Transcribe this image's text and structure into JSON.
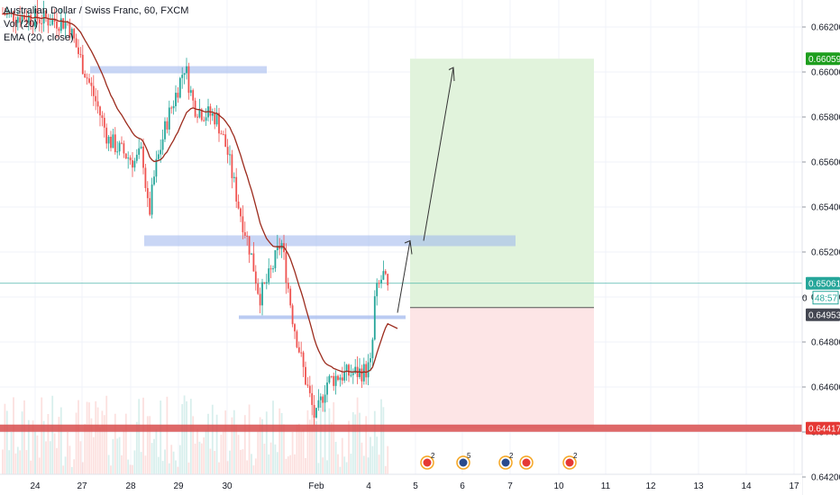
{
  "legend": {
    "symbol": "Australian Dollar / Swiss Franc, 60, FXCM",
    "volume": "Vol (20)",
    "ema": "EMA (20, close)"
  },
  "chart_data": {
    "type": "candlestick",
    "title": "Australian Dollar / Swiss Franc, 60, FXCM",
    "y_ticks": [
      "0.66200",
      "0.66000",
      "0.65800",
      "0.65600",
      "0.65400",
      "0.65200",
      "0.65000",
      "0.64800",
      "0.64600",
      "0.64400",
      "0.64200"
    ],
    "x_ticks": [
      "24",
      "27",
      "28",
      "29",
      "30",
      "Feb",
      "4",
      "5",
      "6",
      "7",
      "10",
      "11",
      "12",
      "13",
      "14",
      "17"
    ],
    "ylim": [
      0.6412,
      0.6632
    ],
    "price_labels": [
      {
        "value": "0.66059",
        "color": "#1e9e1e",
        "role": "target"
      },
      {
        "value": "0.65061",
        "color": "#26a69a",
        "role": "last-price"
      },
      {
        "value": "48:57",
        "color": "#26a69a",
        "role": "countdown"
      },
      {
        "value": "0.64953",
        "color": "#434651",
        "role": "entry"
      },
      {
        "value": "0.64417",
        "color": "#e53935",
        "role": "stop"
      }
    ],
    "countdown_prefix": "0",
    "levels": [
      {
        "name": "resistance-zone-upper",
        "value": 0.6601,
        "color": "#9db5ec"
      },
      {
        "name": "resistance-zone-middle",
        "value": 0.6525,
        "color": "#9db5ec"
      },
      {
        "name": "support-zone-lower",
        "value": 0.6491,
        "color": "#9db5ec"
      },
      {
        "name": "major-support",
        "value": 0.64417,
        "color": "#d84e4e"
      }
    ],
    "position": {
      "entry": 0.64953,
      "target": 0.66059,
      "stop": 0.64417
    },
    "ema_color": "#9c2b1d",
    "up_color": "#26a69a",
    "down_color": "#ef5350",
    "events": [
      {
        "country": "CN",
        "count": "2"
      },
      {
        "country": "AU",
        "count": "5"
      },
      {
        "country": "AU",
        "count": "2"
      },
      {
        "country": "CH",
        "count": ""
      },
      {
        "country": "CN",
        "count": "2"
      }
    ]
  }
}
